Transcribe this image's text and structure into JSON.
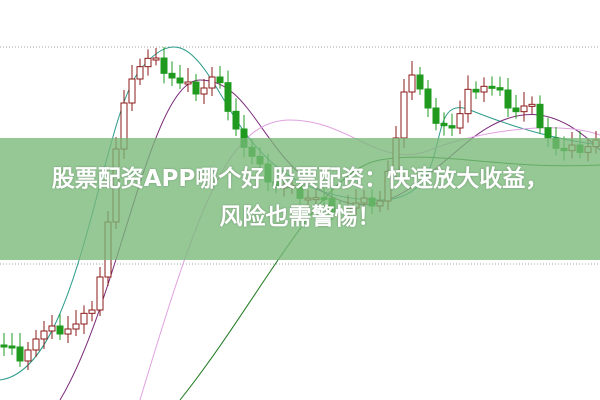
{
  "title": {
    "line1": "股票配资APP哪个好 股票配资：快速放大收益，",
    "line2": "风险也需警惕！"
  },
  "colors": {
    "up_candle": "#8b1a1a",
    "down_candle": "#1f9a1f",
    "banner": "#78b978",
    "ma_lines": [
      "#2a9a8a",
      "#7a2a7a",
      "#e0a0e0",
      "#1f7a1f"
    ]
  }
}
